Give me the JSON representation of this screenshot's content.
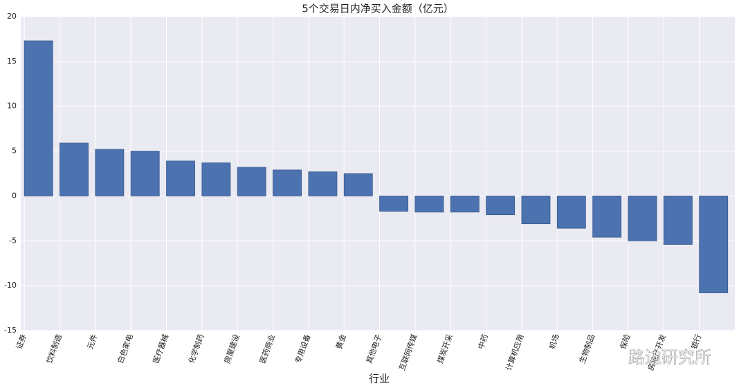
{
  "chart_data": {
    "type": "bar",
    "title": "5个交易日内净买入金额（亿元）",
    "x_label": "行业",
    "categories": [
      "证券",
      "饮料制造",
      "元件",
      "白色家电",
      "医疗器械",
      "化学制药",
      "房屋建设",
      "医药商业",
      "专用设备",
      "黄金",
      "其他电子",
      "互联网传媒",
      "煤炭开采",
      "中药",
      "计算机应用",
      "机场",
      "生物制品",
      "保险",
      "房地产开发",
      "银行"
    ],
    "values": [
      17.3,
      5.9,
      5.2,
      5.0,
      3.9,
      3.7,
      3.2,
      2.9,
      2.7,
      2.5,
      -1.7,
      -1.8,
      -1.8,
      -2.1,
      -3.1,
      -3.6,
      -4.6,
      -5.0,
      -5.4,
      -10.8
    ],
    "color": "#4c72b0",
    "ylim": [
      -15,
      20
    ],
    "yticks": [
      -15,
      -10,
      -5,
      0,
      5,
      10,
      15,
      20
    ],
    "grid": true,
    "watermark": "路边研究所"
  }
}
